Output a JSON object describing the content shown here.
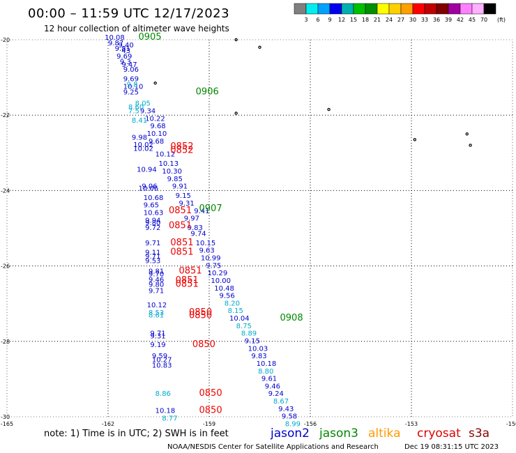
{
  "chart_data": {
    "type": "scatter",
    "title": "00:00  –  11:59 UTC 12/17/2023",
    "subtitle": "12 hour collection of altimeter wave heights",
    "xlim": [
      -165,
      -150
    ],
    "ylim": [
      -30,
      -20
    ],
    "x_ticks": [
      {
        "value": -165,
        "label": "-165"
      },
      {
        "value": -162,
        "label": "-162"
      },
      {
        "value": -159,
        "label": "-159"
      },
      {
        "value": -156,
        "label": "-156"
      },
      {
        "value": -153,
        "label": "-153"
      },
      {
        "value": -150,
        "label": "-150"
      }
    ],
    "y_ticks": [
      {
        "value": -20,
        "label": "-20"
      },
      {
        "value": -22,
        "label": "-22"
      },
      {
        "value": -24,
        "label": "-24"
      },
      {
        "value": -26,
        "label": "-26"
      },
      {
        "value": -28,
        "label": "-28"
      },
      {
        "value": -30,
        "label": "-30"
      }
    ],
    "grid": "dotted",
    "colorbar": {
      "unit": "(ft)",
      "levels": [
        "3",
        "6",
        "9",
        "12",
        "15",
        "18",
        "21",
        "24",
        "27",
        "30",
        "33",
        "36",
        "39",
        "42",
        "45",
        "70"
      ],
      "colors": [
        "#808080",
        "#00eeee",
        "#00a0ff",
        "#0000ee",
        "#00b0b0",
        "#00c000",
        "#009000",
        "#ffff00",
        "#ffd000",
        "#ffa000",
        "#ff0000",
        "#c00000",
        "#800000",
        "#a000a0",
        "#ff80ff",
        "#ffb0ff",
        "#000000"
      ]
    },
    "series": [
      {
        "name": "jason2",
        "color": "#0000cc"
      },
      {
        "name": "jason3",
        "color": "#008800"
      },
      {
        "name": "altika",
        "color": "#ff9900"
      },
      {
        "name": "cryosat",
        "color": "#dd0000"
      },
      {
        "name": "s3a",
        "color": "#880000"
      }
    ],
    "points": [
      {
        "lon": -162.1,
        "lat": -20.0,
        "text": "10.08",
        "c": "blue"
      },
      {
        "lon": -162.0,
        "lat": -20.15,
        "text": "9.87",
        "c": "blue"
      },
      {
        "lon": -161.7,
        "lat": -20.2,
        "text": "9.40",
        "c": "blue"
      },
      {
        "lon": -161.8,
        "lat": -20.3,
        "text": "9.81",
        "c": "blue"
      },
      {
        "lon": -161.6,
        "lat": -20.35,
        "text": "43",
        "c": "blue"
      },
      {
        "lon": -161.75,
        "lat": -20.5,
        "text": "9.69",
        "c": "blue"
      },
      {
        "lon": -161.65,
        "lat": -20.65,
        "text": "9.3",
        "c": "blue"
      },
      {
        "lon": -161.6,
        "lat": -20.72,
        "text": "9.47",
        "c": "blue"
      },
      {
        "lon": -161.55,
        "lat": -20.85,
        "text": "9.06",
        "c": "blue"
      },
      {
        "lon": -161.55,
        "lat": -21.1,
        "text": "9.69",
        "c": "blue"
      },
      {
        "lon": -161.55,
        "lat": -21.3,
        "text": "10.10",
        "c": "blue"
      },
      {
        "lon": -161.45,
        "lat": -21.25,
        "text": "9.8",
        "c": "cyan"
      },
      {
        "lon": -161.55,
        "lat": -21.45,
        "text": "9.25",
        "c": "blue"
      },
      {
        "lon": -161.2,
        "lat": -21.75,
        "text": "8.05",
        "c": "cyan"
      },
      {
        "lon": -161.4,
        "lat": -21.85,
        "text": "8.60",
        "c": "cyan"
      },
      {
        "lon": -161.4,
        "lat": -21.95,
        "text": "7.5",
        "c": "cyan"
      },
      {
        "lon": -161.05,
        "lat": -21.95,
        "text": "9.34",
        "c": "blue"
      },
      {
        "lon": -160.9,
        "lat": -22.15,
        "text": "10.22",
        "c": "blue"
      },
      {
        "lon": -161.3,
        "lat": -22.2,
        "text": "8.41",
        "c": "cyan"
      },
      {
        "lon": -160.75,
        "lat": -22.35,
        "text": "9.68",
        "c": "blue"
      },
      {
        "lon": -160.85,
        "lat": -22.55,
        "text": "10.10",
        "c": "blue"
      },
      {
        "lon": -161.3,
        "lat": -22.65,
        "text": "9.98",
        "c": "blue"
      },
      {
        "lon": -160.8,
        "lat": -22.75,
        "text": "9.68",
        "c": "blue"
      },
      {
        "lon": -161.25,
        "lat": -22.85,
        "text": "10.02",
        "c": "blue"
      },
      {
        "lon": -161.25,
        "lat": -22.95,
        "text": "10.02",
        "c": "blue"
      },
      {
        "lon": -160.6,
        "lat": -23.1,
        "text": "10.12",
        "c": "blue"
      },
      {
        "lon": -160.5,
        "lat": -23.35,
        "text": "10.13",
        "c": "blue"
      },
      {
        "lon": -161.15,
        "lat": -23.5,
        "text": "10.94",
        "c": "blue"
      },
      {
        "lon": -160.4,
        "lat": -23.55,
        "text": "10.30",
        "c": "blue"
      },
      {
        "lon": -160.25,
        "lat": -23.75,
        "text": "9.85",
        "c": "blue"
      },
      {
        "lon": -161.0,
        "lat": -23.95,
        "text": "9.06",
        "c": "blue"
      },
      {
        "lon": -161.1,
        "lat": -24.0,
        "text": "10.06",
        "c": "blue"
      },
      {
        "lon": -160.1,
        "lat": -23.95,
        "text": "9.91",
        "c": "blue"
      },
      {
        "lon": -160.0,
        "lat": -24.2,
        "text": "9.15",
        "c": "blue"
      },
      {
        "lon": -160.95,
        "lat": -24.25,
        "text": "10.68",
        "c": "blue"
      },
      {
        "lon": -159.9,
        "lat": -24.4,
        "text": "9.31",
        "c": "blue"
      },
      {
        "lon": -160.95,
        "lat": -24.45,
        "text": "9.65",
        "c": "blue"
      },
      {
        "lon": -159.45,
        "lat": -24.6,
        "text": "9.41",
        "c": "blue"
      },
      {
        "lon": -160.95,
        "lat": -24.65,
        "text": "10.63",
        "c": "blue"
      },
      {
        "lon": -159.75,
        "lat": -24.8,
        "text": "9.97",
        "c": "blue"
      },
      {
        "lon": -160.9,
        "lat": -24.85,
        "text": "9.94",
        "c": "blue"
      },
      {
        "lon": -160.9,
        "lat": -24.92,
        "text": "9.80",
        "c": "blue"
      },
      {
        "lon": -159.65,
        "lat": -25.05,
        "text": "9.83",
        "c": "blue"
      },
      {
        "lon": -160.9,
        "lat": -25.05,
        "text": "9.72",
        "c": "blue"
      },
      {
        "lon": -159.55,
        "lat": -25.2,
        "text": "9.74",
        "c": "blue"
      },
      {
        "lon": -159.4,
        "lat": -25.45,
        "text": "10.15",
        "c": "blue"
      },
      {
        "lon": -160.9,
        "lat": -25.45,
        "text": "9.71",
        "c": "blue"
      },
      {
        "lon": -159.3,
        "lat": -25.65,
        "text": "9.63",
        "c": "blue"
      },
      {
        "lon": -160.9,
        "lat": -25.7,
        "text": "9.11",
        "c": "blue"
      },
      {
        "lon": -160.9,
        "lat": -25.8,
        "text": "9.71",
        "c": "blue"
      },
      {
        "lon": -159.25,
        "lat": -25.85,
        "text": "10.99",
        "c": "blue"
      },
      {
        "lon": -160.9,
        "lat": -25.92,
        "text": "9.53",
        "c": "blue"
      },
      {
        "lon": -159.1,
        "lat": -26.05,
        "text": "9.75",
        "c": "blue"
      },
      {
        "lon": -160.8,
        "lat": -26.2,
        "text": "9.81",
        "c": "blue"
      },
      {
        "lon": -159.05,
        "lat": -26.25,
        "text": "10.29",
        "c": "blue"
      },
      {
        "lon": -160.8,
        "lat": -26.28,
        "text": "9.70",
        "c": "blue"
      },
      {
        "lon": -160.8,
        "lat": -26.42,
        "text": "9.46",
        "c": "blue"
      },
      {
        "lon": -158.95,
        "lat": -26.45,
        "text": "10.00",
        "c": "blue"
      },
      {
        "lon": -160.8,
        "lat": -26.55,
        "text": "9.80",
        "c": "blue"
      },
      {
        "lon": -158.85,
        "lat": -26.65,
        "text": "10.48",
        "c": "blue"
      },
      {
        "lon": -160.8,
        "lat": -26.72,
        "text": "9.71",
        "c": "blue"
      },
      {
        "lon": -158.7,
        "lat": -26.85,
        "text": "9.56",
        "c": "blue"
      },
      {
        "lon": -158.55,
        "lat": -27.05,
        "text": "8.20",
        "c": "cyan"
      },
      {
        "lon": -160.85,
        "lat": -27.1,
        "text": "10.12",
        "c": "blue"
      },
      {
        "lon": -158.45,
        "lat": -27.25,
        "text": "8.15",
        "c": "cyan"
      },
      {
        "lon": -160.8,
        "lat": -27.3,
        "text": "8.53",
        "c": "cyan"
      },
      {
        "lon": -160.8,
        "lat": -27.37,
        "text": "8.61",
        "c": "cyan"
      },
      {
        "lon": -158.4,
        "lat": -27.45,
        "text": "10.04",
        "c": "blue"
      },
      {
        "lon": -158.2,
        "lat": -27.65,
        "text": "8.75",
        "c": "cyan"
      },
      {
        "lon": -158.05,
        "lat": -27.85,
        "text": "8.89",
        "c": "cyan"
      },
      {
        "lon": -160.75,
        "lat": -27.85,
        "text": "9.71",
        "c": "blue"
      },
      {
        "lon": -160.75,
        "lat": -27.92,
        "text": "9.31",
        "c": "blue"
      },
      {
        "lon": -157.95,
        "lat": -28.05,
        "text": "9.15",
        "c": "blue"
      },
      {
        "lon": -160.75,
        "lat": -28.15,
        "text": "9.19",
        "c": "blue"
      },
      {
        "lon": -157.85,
        "lat": -28.25,
        "text": "10.03",
        "c": "blue"
      },
      {
        "lon": -157.75,
        "lat": -28.45,
        "text": "9.83",
        "c": "blue"
      },
      {
        "lon": -160.7,
        "lat": -28.45,
        "text": "9.59",
        "c": "blue"
      },
      {
        "lon": -160.7,
        "lat": -28.55,
        "text": "10.27",
        "c": "blue"
      },
      {
        "lon": -157.6,
        "lat": -28.65,
        "text": "10.18",
        "c": "blue"
      },
      {
        "lon": -160.7,
        "lat": -28.7,
        "text": "10.83",
        "c": "blue"
      },
      {
        "lon": -157.55,
        "lat": -28.85,
        "text": "8.80",
        "c": "cyan"
      },
      {
        "lon": -157.45,
        "lat": -29.05,
        "text": "9.61",
        "c": "blue"
      },
      {
        "lon": -157.35,
        "lat": -29.25,
        "text": "9.46",
        "c": "blue"
      },
      {
        "lon": -157.25,
        "lat": -29.45,
        "text": "9.24",
        "c": "blue"
      },
      {
        "lon": -160.6,
        "lat": -29.45,
        "text": "8.86",
        "c": "cyan"
      },
      {
        "lon": -157.1,
        "lat": -29.65,
        "text": "8.67",
        "c": "cyan"
      },
      {
        "lon": -156.95,
        "lat": -29.85,
        "text": "9.43",
        "c": "blue"
      },
      {
        "lon": -160.6,
        "lat": -29.9,
        "text": "10.18",
        "c": "blue"
      },
      {
        "lon": -156.85,
        "lat": -30.05,
        "text": "9.58",
        "c": "blue"
      },
      {
        "lon": -160.4,
        "lat": -30.1,
        "text": "8.77",
        "c": "cyan"
      },
      {
        "lon": -156.75,
        "lat": -30.25,
        "text": "8.99",
        "c": "cyan"
      }
    ],
    "time_labels": [
      {
        "lon": -161.1,
        "lat": -20.0,
        "text": "0905",
        "c": "green"
      },
      {
        "lon": -159.4,
        "lat": -21.45,
        "text": "0906",
        "c": "green"
      },
      {
        "lon": -159.3,
        "lat": -24.55,
        "text": "0907",
        "c": "green"
      },
      {
        "lon": -156.9,
        "lat": -27.45,
        "text": "0908",
        "c": "green"
      },
      {
        "lon": -160.15,
        "lat": -22.9,
        "text": "0852",
        "c": "red"
      },
      {
        "lon": -160.15,
        "lat": -23.0,
        "text": "0852",
        "c": "red"
      },
      {
        "lon": -160.2,
        "lat": -24.6,
        "text": "0851",
        "c": "red"
      },
      {
        "lon": -160.2,
        "lat": -25.0,
        "text": "0851",
        "c": "red"
      },
      {
        "lon": -160.15,
        "lat": -25.45,
        "text": "0851",
        "c": "red"
      },
      {
        "lon": -160.15,
        "lat": -25.7,
        "text": "0851",
        "c": "red"
      },
      {
        "lon": -159.9,
        "lat": -26.2,
        "text": "0851",
        "c": "red"
      },
      {
        "lon": -160.0,
        "lat": -26.45,
        "text": "0851",
        "c": "red"
      },
      {
        "lon": -160.0,
        "lat": -26.55,
        "text": "0851",
        "c": "red"
      },
      {
        "lon": -159.6,
        "lat": -27.3,
        "text": "0850",
        "c": "red"
      },
      {
        "lon": -159.6,
        "lat": -27.38,
        "text": "0850",
        "c": "red"
      },
      {
        "lon": -159.5,
        "lat": -28.15,
        "text": "0850",
        "c": "red"
      },
      {
        "lon": -159.3,
        "lat": -29.45,
        "text": "0850",
        "c": "red"
      },
      {
        "lon": -159.3,
        "lat": -29.9,
        "text": "0850",
        "c": "red"
      }
    ],
    "islands": [
      {
        "lon": -158.2,
        "lat": -20.0
      },
      {
        "lon": -157.5,
        "lat": -20.2
      },
      {
        "lon": -160.6,
        "lat": -21.15
      },
      {
        "lon": -158.2,
        "lat": -21.95
      },
      {
        "lon": -155.45,
        "lat": -21.85
      },
      {
        "lon": -152.9,
        "lat": -22.65
      },
      {
        "lon": -151.35,
        "lat": -22.5
      },
      {
        "lon": -151.25,
        "lat": -22.8
      }
    ]
  },
  "footer": {
    "note": "note:  1) Time is in UTC; 2) SWH is in feet",
    "credit": "NOAA/NESDIS Center for Satellite Applications and Research",
    "timestamp": "Dec 19 08:31:15 UTC 2023"
  }
}
